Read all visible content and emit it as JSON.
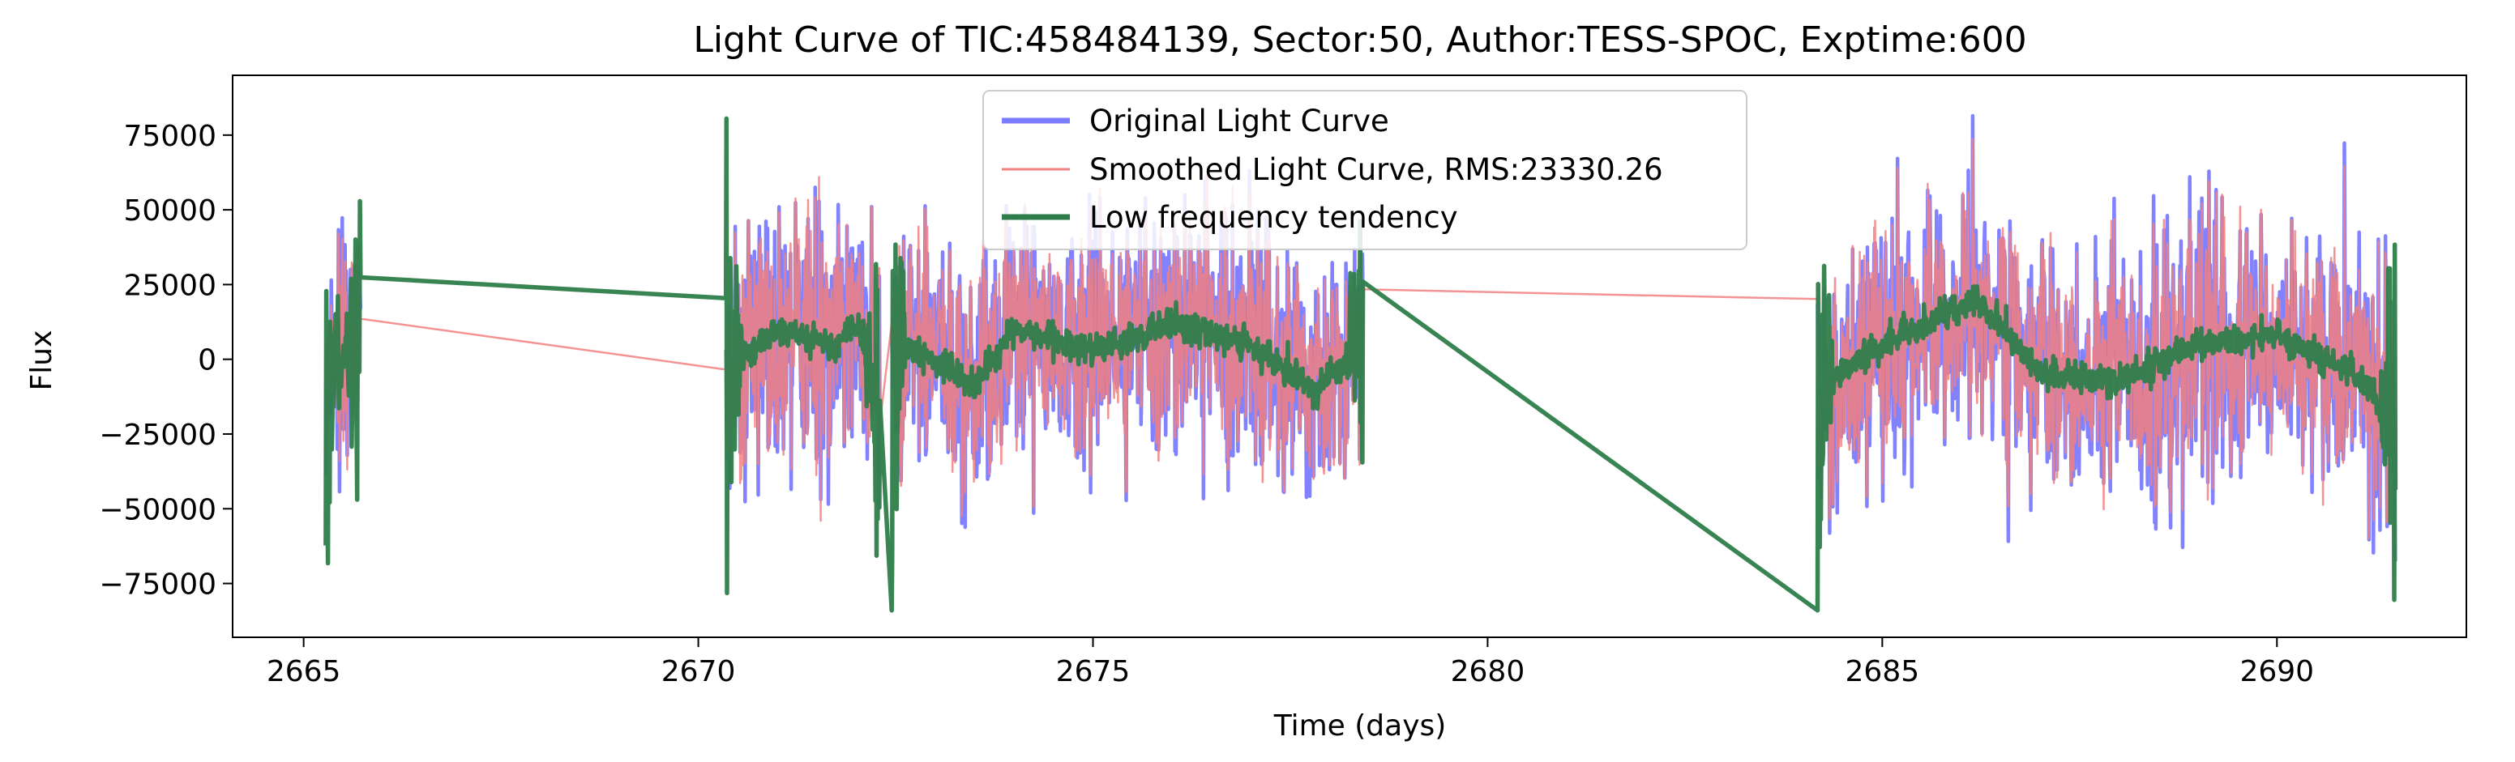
{
  "chart_data": {
    "type": "line",
    "title": "Light Curve of TIC:458484139, Sector:50, Author:TESS-SPOC, Exptime:600",
    "xlabel": "Time (days)",
    "ylabel": "Flux",
    "xlim": [
      2664.1,
      2692.4
    ],
    "ylim": [
      -93000,
      95000
    ],
    "x_ticks": [
      2665,
      2670,
      2675,
      2680,
      2685,
      2690
    ],
    "y_ticks": [
      -75000,
      -50000,
      -25000,
      0,
      25000,
      50000,
      75000
    ],
    "x_tick_labels": [
      "2665",
      "2670",
      "2675",
      "2680",
      "2685",
      "2690"
    ],
    "y_tick_labels": [
      "−75000",
      "−50000",
      "−25000",
      "0",
      "25000",
      "50000",
      "75000"
    ],
    "grid": false,
    "legend_position": "upper center",
    "segments": [
      {
        "x_start": 2665.28,
        "x_end": 2665.72,
        "amp": 45000
      },
      {
        "x_start": 2670.35,
        "x_end": 2672.3,
        "amp": 50000
      },
      {
        "x_start": 2672.45,
        "x_end": 2678.42,
        "amp": 48000
      },
      {
        "x_start": 2684.18,
        "x_end": 2691.5,
        "amp": 50000
      }
    ],
    "series": [
      {
        "name": "Original Light Curve",
        "color": "#7b7bff",
        "style": "solid",
        "approx_range": [
          -84000,
          85000
        ]
      },
      {
        "name": "Smoothed Light Curve, RMS:23330.26",
        "color": "#f28080",
        "style": "solid",
        "rms": 23330.26
      },
      {
        "name": "Low frequency tendency",
        "color": "#2e7d4a",
        "style": "solid",
        "key_points": [
          {
            "x": 2665.3,
            "y": -10000
          },
          {
            "x": 2665.75,
            "y": 15000
          },
          {
            "x": 2670.4,
            "y": -3000
          },
          {
            "x": 2671.0,
            "y": 10000
          },
          {
            "x": 2671.7,
            "y": 5000
          },
          {
            "x": 2672.0,
            "y": 12000
          },
          {
            "x": 2672.3,
            "y": -14000
          },
          {
            "x": 2672.6,
            "y": 5000
          },
          {
            "x": 2673.5,
            "y": -8000
          },
          {
            "x": 2674.0,
            "y": 10000
          },
          {
            "x": 2675.0,
            "y": 3000
          },
          {
            "x": 2676.0,
            "y": 12000
          },
          {
            "x": 2677.0,
            "y": 5000
          },
          {
            "x": 2677.8,
            "y": -10000
          },
          {
            "x": 2678.4,
            "y": 3000
          },
          {
            "x": 2684.2,
            "y": -9000
          },
          {
            "x": 2685.2,
            "y": 8000
          },
          {
            "x": 2686.2,
            "y": 20000
          },
          {
            "x": 2687.0,
            "y": -5000
          },
          {
            "x": 2688.0,
            "y": -7000
          },
          {
            "x": 2689.0,
            "y": 5000
          },
          {
            "x": 2690.0,
            "y": 8000
          },
          {
            "x": 2691.0,
            "y": -5000
          },
          {
            "x": 2691.5,
            "y": -21000
          }
        ]
      }
    ]
  }
}
